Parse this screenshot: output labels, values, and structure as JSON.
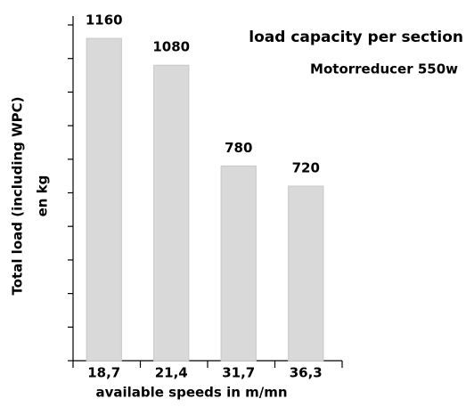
{
  "chart_data": {
    "type": "bar",
    "title": "load capacity per section",
    "subtitle": "Motorreducer  550w",
    "y_label": [
      "Total load (including WPC)",
      "en kg"
    ],
    "x_label": "available speeds in m/mn",
    "categories": [
      "18,7",
      "21,4",
      "31,7",
      "36,3"
    ],
    "values": [
      1160,
      1080,
      780,
      720
    ],
    "color": "#d9d9d9",
    "ylim": [
      200,
      1200
    ],
    "yticks": [
      200,
      300,
      400,
      500,
      600,
      700,
      800,
      900,
      1000,
      1100,
      1200
    ],
    "grid": false
  }
}
